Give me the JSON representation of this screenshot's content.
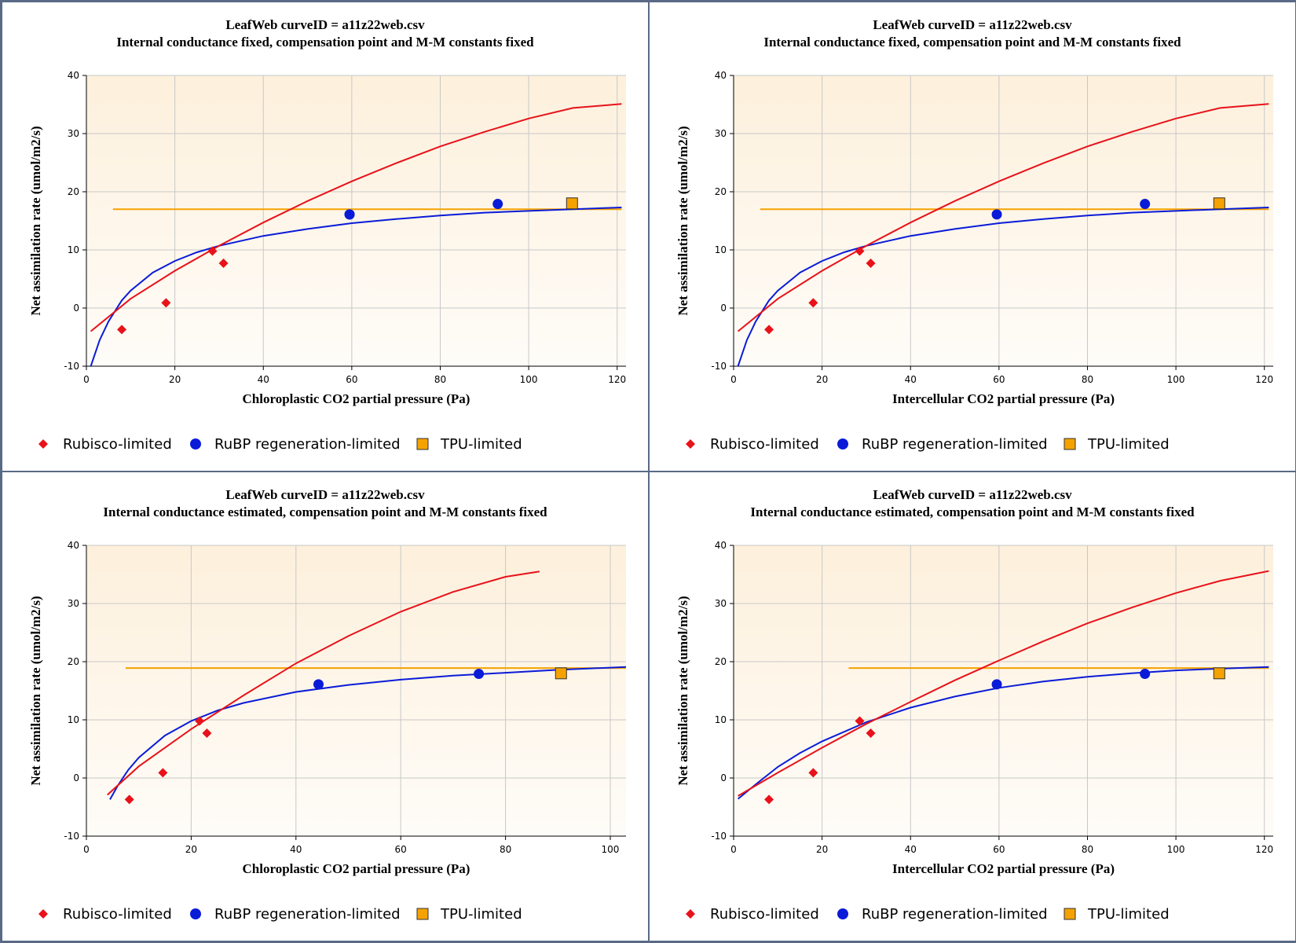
{
  "colors": {
    "rubisco": "#e8121a",
    "rubp": "#0a1bd8",
    "tpu": "#f5a200",
    "plot_bg_top": "#fdf0dc",
    "plot_bg_bottom": "#fefcf8",
    "grid": "#c8c8c8",
    "border": "#5a6a86"
  },
  "legend": {
    "rubisco_label": "Rubisco-limited",
    "rubp_label": "RuBP regeneration-limited",
    "tpu_label": "TPU-limited",
    "rubisco_icon": "diamond-icon",
    "rubp_icon": "circle-icon",
    "tpu_icon": "square-icon"
  },
  "chart_data": [
    {
      "type": "line",
      "title": "LeafWeb curveID = a11z22web.csv",
      "subtitle": "Internal conductance fixed, compensation point and M-M constants fixed",
      "xlabel": "Chloroplastic CO2 partial pressure (Pa)",
      "ylabel": "Net assimilation rate (umol/m2/s)",
      "xlim": [
        0,
        122
      ],
      "ylim": [
        -10,
        40
      ],
      "xticks": [
        0,
        20,
        40,
        60,
        80,
        100,
        120
      ],
      "yticks": [
        -10,
        0,
        10,
        20,
        30,
        40
      ],
      "grid": true,
      "legend": "bottom",
      "series": [
        {
          "name": "Rubisco-limited",
          "kind": "scatter",
          "marker": "diamond",
          "x": [
            8,
            18,
            28.5,
            31
          ],
          "y": [
            -3.7,
            0.9,
            9.8,
            7.7
          ]
        },
        {
          "name": "RuBP regeneration-limited",
          "kind": "scatter",
          "marker": "circle",
          "x": [
            59.5,
            93,
            59.5
          ],
          "y": [
            16.1,
            17.9,
            16.1
          ]
        },
        {
          "name": "TPU-limited",
          "kind": "scatter",
          "marker": "square",
          "x": [
            109.8
          ],
          "y": [
            18.0
          ]
        },
        {
          "name": "Rubisco-limited",
          "kind": "line",
          "x": [
            1,
            10,
            20,
            30,
            40,
            50,
            60,
            70,
            80,
            90,
            100,
            110,
            121
          ],
          "y": [
            -4.0,
            1.6,
            6.4,
            10.7,
            14.7,
            18.4,
            21.8,
            24.9,
            27.8,
            30.3,
            32.6,
            34.4,
            35.1
          ]
        },
        {
          "name": "RuBP regeneration-limited",
          "kind": "line",
          "x": [
            1,
            3,
            5,
            8,
            10,
            15,
            20,
            25,
            30,
            40,
            50,
            60,
            70,
            80,
            90,
            100,
            110,
            121
          ],
          "y": [
            -10.0,
            -5.5,
            -2.3,
            1.3,
            3.0,
            6.1,
            8.1,
            9.6,
            10.7,
            12.4,
            13.6,
            14.6,
            15.3,
            15.9,
            16.4,
            16.7,
            17.0,
            17.3
          ]
        },
        {
          "name": "TPU-limited",
          "kind": "line",
          "x": [
            6,
            121
          ],
          "y": [
            17.0,
            17.0
          ]
        }
      ]
    },
    {
      "type": "line",
      "title": "LeafWeb curveID = a11z22web.csv",
      "subtitle": "Internal conductance fixed, compensation point and M-M constants fixed",
      "xlabel": "Intercellular CO2 partial pressure (Pa)",
      "ylabel": "Net assimilation rate (umol/m2/s)",
      "xlim": [
        0,
        122
      ],
      "ylim": [
        -10,
        40
      ],
      "xticks": [
        0,
        20,
        40,
        60,
        80,
        100,
        120
      ],
      "yticks": [
        -10,
        0,
        10,
        20,
        30,
        40
      ],
      "grid": true,
      "legend": "bottom",
      "series": [
        {
          "name": "Rubisco-limited",
          "kind": "scatter",
          "marker": "diamond",
          "x": [
            8,
            18,
            28.5,
            31
          ],
          "y": [
            -3.7,
            0.9,
            9.8,
            7.7
          ]
        },
        {
          "name": "RuBP regeneration-limited",
          "kind": "scatter",
          "marker": "circle",
          "x": [
            59.5,
            93
          ],
          "y": [
            16.1,
            17.9
          ]
        },
        {
          "name": "TPU-limited",
          "kind": "scatter",
          "marker": "square",
          "x": [
            109.8
          ],
          "y": [
            18.0
          ]
        },
        {
          "name": "Rubisco-limited",
          "kind": "line",
          "x": [
            1,
            10,
            20,
            30,
            40,
            50,
            60,
            70,
            80,
            90,
            100,
            110,
            121
          ],
          "y": [
            -4.0,
            1.6,
            6.4,
            10.7,
            14.7,
            18.4,
            21.8,
            24.9,
            27.8,
            30.3,
            32.6,
            34.4,
            35.1
          ]
        },
        {
          "name": "RuBP regeneration-limited",
          "kind": "line",
          "x": [
            1,
            3,
            5,
            8,
            10,
            15,
            20,
            25,
            30,
            40,
            50,
            60,
            70,
            80,
            90,
            100,
            110,
            121
          ],
          "y": [
            -10.0,
            -5.5,
            -2.3,
            1.3,
            3.0,
            6.1,
            8.1,
            9.6,
            10.7,
            12.4,
            13.6,
            14.6,
            15.3,
            15.9,
            16.4,
            16.7,
            17.0,
            17.3
          ]
        },
        {
          "name": "TPU-limited",
          "kind": "line",
          "x": [
            6,
            121
          ],
          "y": [
            17.0,
            17.0
          ]
        }
      ]
    },
    {
      "type": "line",
      "title": "LeafWeb curveID = a11z22web.csv",
      "subtitle": "Internal conductance estimated, compensation point and M-M constants fixed",
      "xlabel": "Chloroplastic CO2 partial pressure (Pa)",
      "ylabel": "Net assimilation rate (umol/m2/s)",
      "xlim": [
        0,
        103
      ],
      "ylim": [
        -10,
        40
      ],
      "xticks": [
        0,
        20,
        40,
        60,
        80,
        100
      ],
      "yticks": [
        -10,
        0,
        10,
        20,
        30,
        40
      ],
      "grid": true,
      "legend": "bottom",
      "series": [
        {
          "name": "Rubisco-limited",
          "kind": "scatter",
          "marker": "diamond",
          "x": [
            8.2,
            14.6,
            21.6,
            23
          ],
          "y": [
            -3.7,
            0.9,
            9.8,
            7.7
          ]
        },
        {
          "name": "RuBP regeneration-limited",
          "kind": "scatter",
          "marker": "circle",
          "x": [
            44.3,
            74.9
          ],
          "y": [
            16.1,
            17.9
          ]
        },
        {
          "name": "TPU-limited",
          "kind": "scatter",
          "marker": "square",
          "x": [
            90.6
          ],
          "y": [
            18.0
          ]
        },
        {
          "name": "Rubisco-limited",
          "kind": "line",
          "x": [
            4,
            10,
            20,
            30,
            40,
            50,
            60,
            70,
            80,
            86.5
          ],
          "y": [
            -2.9,
            2.0,
            8.4,
            14.2,
            19.7,
            24.4,
            28.6,
            32.0,
            34.6,
            35.5
          ]
        },
        {
          "name": "RuBP regeneration-limited",
          "kind": "line",
          "x": [
            4.5,
            6,
            8,
            10,
            15,
            20,
            25,
            30,
            40,
            50,
            60,
            70,
            80,
            90,
            103
          ],
          "y": [
            -3.7,
            -1.3,
            1.4,
            3.5,
            7.3,
            9.8,
            11.6,
            12.9,
            14.8,
            16.0,
            16.9,
            17.6,
            18.1,
            18.6,
            19.1
          ]
        },
        {
          "name": "TPU-limited",
          "kind": "line",
          "x": [
            7.5,
            103
          ],
          "y": [
            18.9,
            18.9
          ]
        }
      ]
    },
    {
      "type": "line",
      "title": "LeafWeb curveID = a11z22web.csv",
      "subtitle": "Internal conductance estimated, compensation point and M-M constants fixed",
      "xlabel": "Intercellular CO2 partial pressure (Pa)",
      "ylabel": "Net assimilation rate (umol/m2/s)",
      "xlim": [
        0,
        122
      ],
      "ylim": [
        -10,
        40
      ],
      "xticks": [
        0,
        20,
        40,
        60,
        80,
        100,
        120
      ],
      "yticks": [
        -10,
        0,
        10,
        20,
        30,
        40
      ],
      "grid": true,
      "legend": "bottom",
      "series": [
        {
          "name": "Rubisco-limited",
          "kind": "scatter",
          "marker": "diamond",
          "x": [
            8,
            18,
            28.5,
            31
          ],
          "y": [
            -3.7,
            0.9,
            9.8,
            7.7
          ]
        },
        {
          "name": "RuBP regeneration-limited",
          "kind": "scatter",
          "marker": "circle",
          "x": [
            59.5,
            93
          ],
          "y": [
            16.1,
            17.9
          ]
        },
        {
          "name": "TPU-limited",
          "kind": "scatter",
          "marker": "square",
          "x": [
            109.8
          ],
          "y": [
            18.0
          ]
        },
        {
          "name": "Rubisco-limited",
          "kind": "line",
          "x": [
            1,
            10,
            20,
            30,
            40,
            50,
            60,
            70,
            80,
            90,
            100,
            110,
            121
          ],
          "y": [
            -3.1,
            0.9,
            5.2,
            9.3,
            13.1,
            16.8,
            20.2,
            23.5,
            26.6,
            29.3,
            31.8,
            33.9,
            35.6
          ]
        },
        {
          "name": "RuBP regeneration-limited",
          "kind": "line",
          "x": [
            1,
            5,
            10,
            15,
            20,
            30,
            40,
            50,
            60,
            70,
            80,
            90,
            100,
            110,
            121
          ],
          "y": [
            -3.6,
            -1.1,
            1.9,
            4.3,
            6.3,
            9.6,
            12.1,
            14.0,
            15.5,
            16.6,
            17.4,
            18.0,
            18.5,
            18.8,
            19.1
          ]
        },
        {
          "name": "TPU-limited",
          "kind": "line",
          "x": [
            26,
            121
          ],
          "y": [
            18.9,
            18.9
          ]
        }
      ]
    }
  ]
}
